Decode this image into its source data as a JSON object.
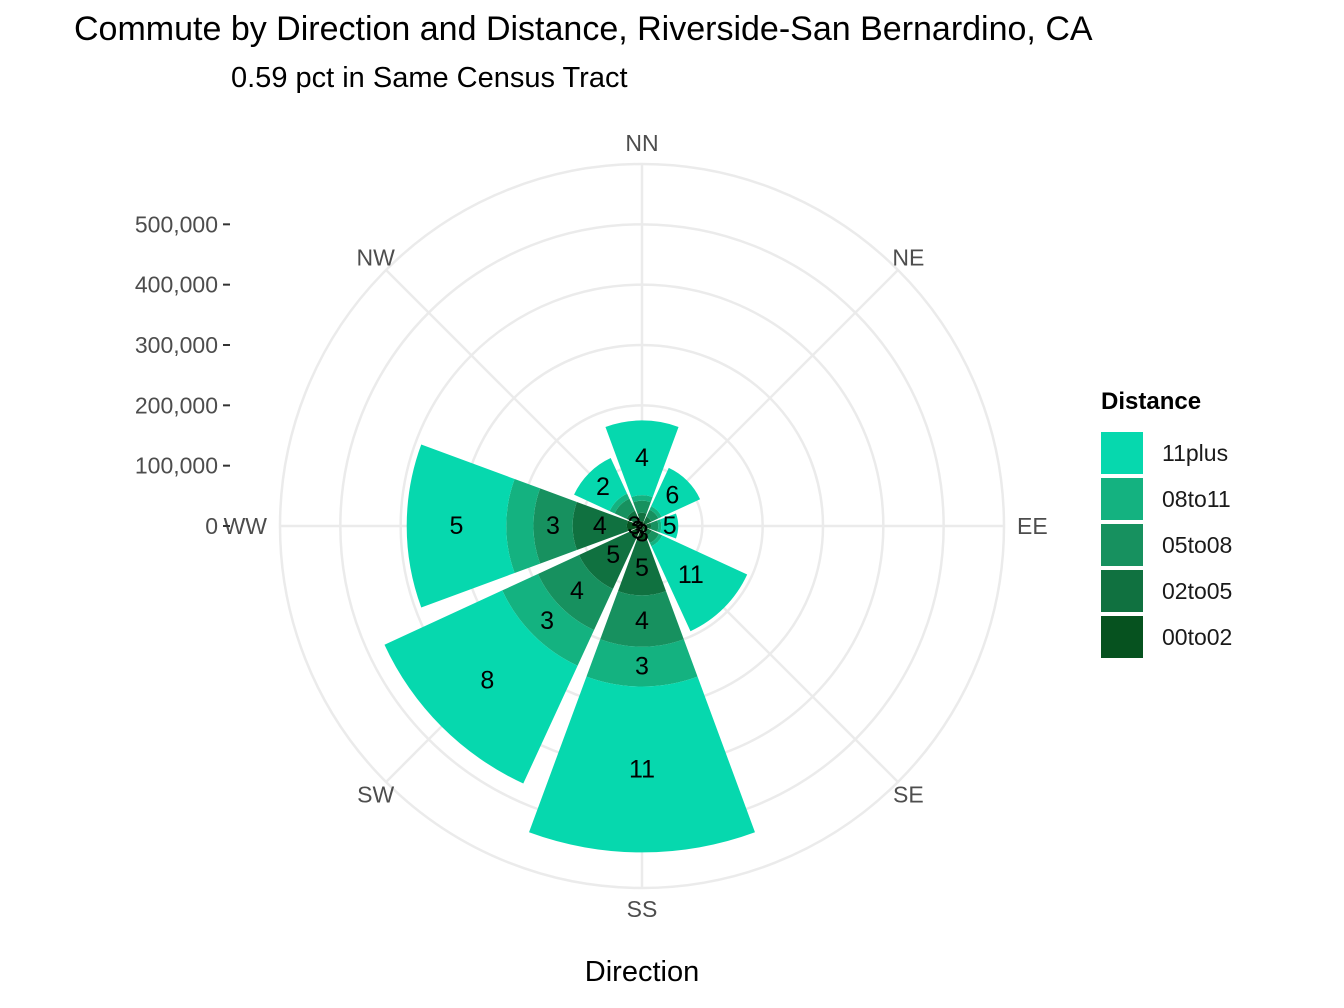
{
  "chart_data": {
    "type": "polar-stacked-bar",
    "title": "Commute by Direction and Distance, Riverside-San Bernardino, CA",
    "subtitle": "0.59 pct in Same Census Tract",
    "xlabel": "Direction",
    "ylabel": "",
    "ylim": [
      0,
      600000
    ],
    "radial_ticks": [
      0,
      100000,
      200000,
      300000,
      400000,
      500000
    ],
    "radial_tick_labels": [
      "0",
      "100,000",
      "200,000",
      "300,000",
      "400,000",
      "500,000"
    ],
    "categories": [
      "NN",
      "NE",
      "EE",
      "SE",
      "SS",
      "SW",
      "WW",
      "NW"
    ],
    "grid": true,
    "legend": {
      "title": "Distance",
      "position": "right"
    },
    "series": [
      {
        "name": "00to02",
        "color": "#06521F",
        "values": [
          8000,
          7000,
          7000,
          8000,
          25000,
          20000,
          25000,
          12000
        ],
        "labels": [
          "",
          "",
          "",
          "",
          "3",
          "3",
          "3",
          ""
        ]
      },
      {
        "name": "02to05",
        "color": "#107140",
        "values": [
          14000,
          10000,
          8000,
          10000,
          90000,
          95000,
          90000,
          16000
        ],
        "labels": [
          "",
          "",
          "",
          "",
          "5",
          "5",
          "4",
          ""
        ]
      },
      {
        "name": "05to08",
        "color": "#17915F",
        "values": [
          20000,
          13000,
          12000,
          13000,
          85000,
          75000,
          65000,
          22000
        ],
        "labels": [
          "",
          "",
          "",
          "",
          "4",
          "4",
          "3",
          ""
        ]
      },
      {
        "name": "08to11",
        "color": "#14B280",
        "values": [
          9000,
          6000,
          5000,
          6000,
          66000,
          65000,
          45000,
          9000
        ],
        "labels": [
          "",
          "",
          "",
          "",
          "3",
          "3",
          "",
          ""
        ]
      },
      {
        "name": "11plus",
        "color": "#06D8AE",
        "values": [
          124000,
          70000,
          28000,
          155000,
          275000,
          215000,
          165000,
          65000
        ],
        "labels": [
          "4",
          "6",
          "5",
          "11",
          "11",
          "8",
          "5",
          "2"
        ]
      }
    ]
  }
}
